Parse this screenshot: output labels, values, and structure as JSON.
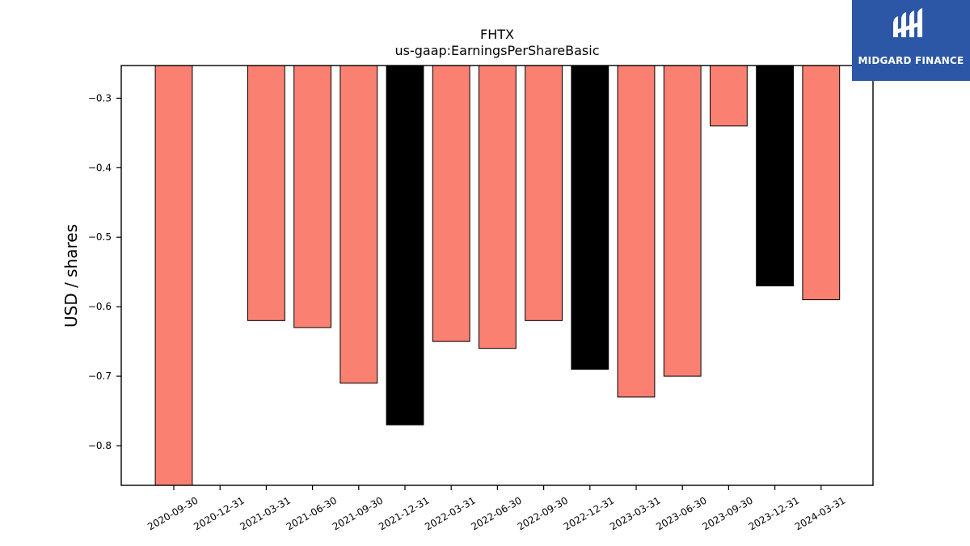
{
  "brand": {
    "name": "MIDGARD FINANCE",
    "icon": "midgard-logo-icon",
    "background": "#2b57a6"
  },
  "chart_data": {
    "type": "bar",
    "title": "FHTX",
    "subtitle": "us-gaap:EarningsPerShareBasic",
    "xlabel": "",
    "ylabel": "USD / shares",
    "ylim": [
      -0.857,
      -0.253
    ],
    "yticks": [
      -0.3,
      -0.4,
      -0.5,
      -0.6,
      -0.7,
      -0.8
    ],
    "ytick_labels": [
      "−0.3",
      "−0.4",
      "−0.5",
      "−0.6",
      "−0.7",
      "−0.8"
    ],
    "grid": false,
    "categories": [
      "2020-09-30",
      "2020-12-31",
      "2021-03-31",
      "2021-06-30",
      "2021-09-30",
      "2021-12-31",
      "2022-03-31",
      "2022-06-30",
      "2022-09-30",
      "2022-12-31",
      "2023-03-31",
      "2023-06-30",
      "2023-09-30",
      "2023-12-31",
      "2024-03-31"
    ],
    "values": [
      -0.87,
      null,
      -0.62,
      -0.63,
      -0.71,
      -0.77,
      -0.65,
      -0.66,
      -0.62,
      -0.69,
      -0.73,
      -0.7,
      -0.34,
      -0.57,
      -0.59
    ],
    "bar_colors": [
      "#fa8072",
      null,
      "#fa8072",
      "#fa8072",
      "#fa8072",
      "#000000",
      "#fa8072",
      "#fa8072",
      "#fa8072",
      "#000000",
      "#fa8072",
      "#fa8072",
      "#fa8072",
      "#000000",
      "#fa8072"
    ],
    "edge_color": "#000000"
  }
}
